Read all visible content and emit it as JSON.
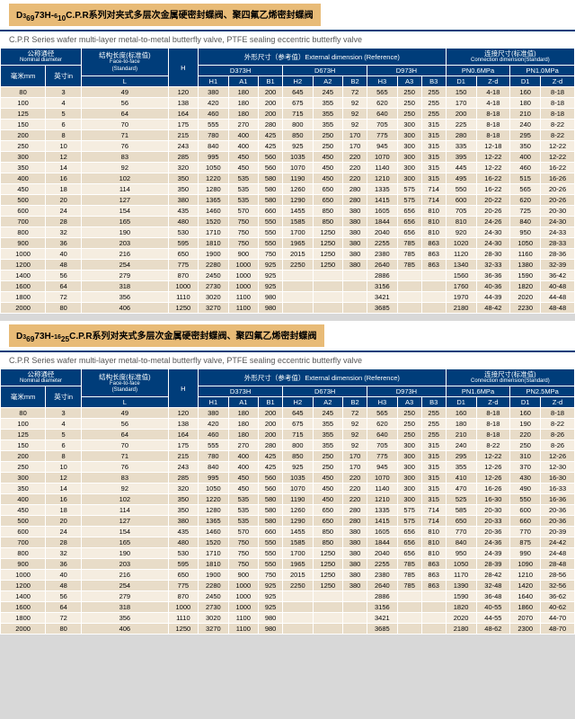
{
  "colors": {
    "header": "#003d7a",
    "titleBox": "#e8bb77",
    "rowOdd": "#e8dcc8",
    "rowEven": "#f5ede0",
    "border": "#fff"
  },
  "sections": [
    {
      "titleHtml": "D<span class='title-sup'>3</span><sub>6</sub><sub>9</sub>73H-<span class='title-sup'>6</span><sub>10</sub>C.P.R系列对夹式多层次金属硬密封蝶阀、聚四氟乙烯密封蝶阀",
      "subtitle": "C.P.R Series wafer multi-layer metal-to-metal butterfly valve,  PTFE sealing eccentric butterfly valve",
      "conn1": "PN0.6MPa",
      "conn2": "PN1.0MPa"
    },
    {
      "titleHtml": "D<span class='title-sup'>3</span><sub>6</sub><sub>9</sub>73H-<span class='title-sup'>16</span><sub>25</sub>C.P.R系列对夹式多层次金属硬密封蝶阀、聚四氟乙烯密封蝶阀",
      "subtitle": "C.P.R Series wafer multi-layer metal-to-metal butterfly valve,  PTFE sealing eccentric butterfly valve",
      "conn1": "PN1.6MPa",
      "conn2": "PN2.5MPa"
    }
  ],
  "headers": {
    "nomDia": "公称通径",
    "nomDiaEn": "Nominal diameter",
    "ftf": "结构长度(标准值)",
    "ftfEn": "Face-to-face",
    "ftfEn2": "(Standard)",
    "extDim": "外形尺寸（参考值）External dimension (Reference)",
    "connDim": "连接尺寸(标准值)",
    "connDimEn": "Connection dimension(Standard)",
    "mm": "毫米mm",
    "in": "英寸in",
    "L": "L",
    "H": "H",
    "D373H": "D373H",
    "D673H": "D673H",
    "D973H": "D973H",
    "H1": "H1",
    "A1": "A1",
    "B1": "B1",
    "H2": "H2",
    "A2": "A2",
    "B2": "B2",
    "H3": "H3",
    "A3": "A3",
    "B3": "B3",
    "D1": "D1",
    "Zd": "Z-d"
  },
  "rows1": [
    [
      "80",
      "3",
      "49",
      "120",
      "380",
      "180",
      "200",
      "645",
      "245",
      "72",
      "565",
      "250",
      "255",
      "150",
      "4-18",
      "160",
      "8-18"
    ],
    [
      "100",
      "4",
      "56",
      "138",
      "420",
      "180",
      "200",
      "675",
      "355",
      "92",
      "620",
      "250",
      "255",
      "170",
      "4-18",
      "180",
      "8-18"
    ],
    [
      "125",
      "5",
      "64",
      "164",
      "460",
      "180",
      "200",
      "715",
      "355",
      "92",
      "640",
      "250",
      "255",
      "200",
      "8-18",
      "210",
      "8-18"
    ],
    [
      "150",
      "6",
      "70",
      "175",
      "555",
      "270",
      "280",
      "800",
      "355",
      "92",
      "705",
      "300",
      "315",
      "225",
      "8-18",
      "240",
      "8-22"
    ],
    [
      "200",
      "8",
      "71",
      "215",
      "780",
      "400",
      "425",
      "850",
      "250",
      "170",
      "775",
      "300",
      "315",
      "280",
      "8-18",
      "295",
      "8-22"
    ],
    [
      "250",
      "10",
      "76",
      "243",
      "840",
      "400",
      "425",
      "925",
      "250",
      "170",
      "945",
      "300",
      "315",
      "335",
      "12-18",
      "350",
      "12-22"
    ],
    [
      "300",
      "12",
      "83",
      "285",
      "995",
      "450",
      "560",
      "1035",
      "450",
      "220",
      "1070",
      "300",
      "315",
      "395",
      "12-22",
      "400",
      "12-22"
    ],
    [
      "350",
      "14",
      "92",
      "320",
      "1050",
      "450",
      "560",
      "1070",
      "450",
      "220",
      "1140",
      "300",
      "315",
      "445",
      "12-22",
      "460",
      "16-22"
    ],
    [
      "400",
      "16",
      "102",
      "350",
      "1220",
      "535",
      "580",
      "1190",
      "450",
      "220",
      "1210",
      "300",
      "315",
      "495",
      "16-22",
      "515",
      "16-26"
    ],
    [
      "450",
      "18",
      "114",
      "350",
      "1280",
      "535",
      "580",
      "1260",
      "650",
      "280",
      "1335",
      "575",
      "714",
      "550",
      "16-22",
      "565",
      "20-26"
    ],
    [
      "500",
      "20",
      "127",
      "380",
      "1365",
      "535",
      "580",
      "1290",
      "650",
      "280",
      "1415",
      "575",
      "714",
      "600",
      "20-22",
      "620",
      "20-26"
    ],
    [
      "600",
      "24",
      "154",
      "435",
      "1460",
      "570",
      "660",
      "1455",
      "850",
      "380",
      "1605",
      "656",
      "810",
      "705",
      "20-26",
      "725",
      "20-30"
    ],
    [
      "700",
      "28",
      "165",
      "480",
      "1520",
      "750",
      "550",
      "1585",
      "850",
      "380",
      "1844",
      "656",
      "810",
      "810",
      "24-26",
      "840",
      "24-30"
    ],
    [
      "800",
      "32",
      "190",
      "530",
      "1710",
      "750",
      "550",
      "1700",
      "1250",
      "380",
      "2040",
      "656",
      "810",
      "920",
      "24-30",
      "950",
      "24-33"
    ],
    [
      "900",
      "36",
      "203",
      "595",
      "1810",
      "750",
      "550",
      "1965",
      "1250",
      "380",
      "2255",
      "785",
      "863",
      "1020",
      "24-30",
      "1050",
      "28-33"
    ],
    [
      "1000",
      "40",
      "216",
      "650",
      "1900",
      "900",
      "750",
      "2015",
      "1250",
      "380",
      "2380",
      "785",
      "863",
      "1120",
      "28-30",
      "1160",
      "28-36"
    ],
    [
      "1200",
      "48",
      "254",
      "775",
      "2280",
      "1000",
      "925",
      "2250",
      "1250",
      "380",
      "2640",
      "785",
      "863",
      "1340",
      "32-33",
      "1380",
      "32-39"
    ],
    [
      "1400",
      "56",
      "279",
      "870",
      "2450",
      "1000",
      "925",
      "",
      "",
      "",
      "2886",
      "",
      "",
      "1560",
      "36-36",
      "1590",
      "36-42"
    ],
    [
      "1600",
      "64",
      "318",
      "1000",
      "2730",
      "1000",
      "925",
      "",
      "",
      "",
      "3156",
      "",
      "",
      "1760",
      "40-36",
      "1820",
      "40-48"
    ],
    [
      "1800",
      "72",
      "356",
      "1110",
      "3020",
      "1100",
      "980",
      "",
      "",
      "",
      "3421",
      "",
      "",
      "1970",
      "44-39",
      "2020",
      "44-48"
    ],
    [
      "2000",
      "80",
      "406",
      "1250",
      "3270",
      "1100",
      "980",
      "",
      "",
      "",
      "3685",
      "",
      "",
      "2180",
      "48-42",
      "2230",
      "48-48"
    ]
  ],
  "rows2": [
    [
      "80",
      "3",
      "49",
      "120",
      "380",
      "180",
      "200",
      "645",
      "245",
      "72",
      "565",
      "250",
      "255",
      "160",
      "8-18",
      "160",
      "8-18"
    ],
    [
      "100",
      "4",
      "56",
      "138",
      "420",
      "180",
      "200",
      "675",
      "355",
      "92",
      "620",
      "250",
      "255",
      "180",
      "8-18",
      "190",
      "8-22"
    ],
    [
      "125",
      "5",
      "64",
      "164",
      "460",
      "180",
      "200",
      "715",
      "355",
      "92",
      "640",
      "250",
      "255",
      "210",
      "8-18",
      "220",
      "8-26"
    ],
    [
      "150",
      "6",
      "70",
      "175",
      "555",
      "270",
      "280",
      "800",
      "355",
      "92",
      "705",
      "300",
      "315",
      "240",
      "8-22",
      "250",
      "8-26"
    ],
    [
      "200",
      "8",
      "71",
      "215",
      "780",
      "400",
      "425",
      "850",
      "250",
      "170",
      "775",
      "300",
      "315",
      "295",
      "12-22",
      "310",
      "12-26"
    ],
    [
      "250",
      "10",
      "76",
      "243",
      "840",
      "400",
      "425",
      "925",
      "250",
      "170",
      "945",
      "300",
      "315",
      "355",
      "12-26",
      "370",
      "12-30"
    ],
    [
      "300",
      "12",
      "83",
      "285",
      "995",
      "450",
      "560",
      "1035",
      "450",
      "220",
      "1070",
      "300",
      "315",
      "410",
      "12-26",
      "430",
      "16-30"
    ],
    [
      "350",
      "14",
      "92",
      "320",
      "1050",
      "450",
      "560",
      "1070",
      "450",
      "220",
      "1140",
      "300",
      "315",
      "470",
      "16-26",
      "490",
      "16-33"
    ],
    [
      "400",
      "16",
      "102",
      "350",
      "1220",
      "535",
      "580",
      "1190",
      "450",
      "220",
      "1210",
      "300",
      "315",
      "525",
      "16-30",
      "550",
      "16-36"
    ],
    [
      "450",
      "18",
      "114",
      "350",
      "1280",
      "535",
      "580",
      "1260",
      "650",
      "280",
      "1335",
      "575",
      "714",
      "585",
      "20-30",
      "600",
      "20-36"
    ],
    [
      "500",
      "20",
      "127",
      "380",
      "1365",
      "535",
      "580",
      "1290",
      "650",
      "280",
      "1415",
      "575",
      "714",
      "650",
      "20-33",
      "660",
      "20-36"
    ],
    [
      "600",
      "24",
      "154",
      "435",
      "1460",
      "570",
      "660",
      "1455",
      "850",
      "380",
      "1605",
      "656",
      "810",
      "770",
      "20-36",
      "770",
      "20-39"
    ],
    [
      "700",
      "28",
      "165",
      "480",
      "1520",
      "750",
      "550",
      "1585",
      "850",
      "380",
      "1844",
      "656",
      "810",
      "840",
      "24-36",
      "875",
      "24-42"
    ],
    [
      "800",
      "32",
      "190",
      "530",
      "1710",
      "750",
      "550",
      "1700",
      "1250",
      "380",
      "2040",
      "656",
      "810",
      "950",
      "24-39",
      "990",
      "24-48"
    ],
    [
      "900",
      "36",
      "203",
      "595",
      "1810",
      "750",
      "550",
      "1965",
      "1250",
      "380",
      "2255",
      "785",
      "863",
      "1050",
      "28-39",
      "1090",
      "28-48"
    ],
    [
      "1000",
      "40",
      "216",
      "650",
      "1900",
      "900",
      "750",
      "2015",
      "1250",
      "380",
      "2380",
      "785",
      "863",
      "1170",
      "28-42",
      "1210",
      "28-56"
    ],
    [
      "1200",
      "48",
      "254",
      "775",
      "2280",
      "1000",
      "925",
      "2250",
      "1250",
      "380",
      "2640",
      "785",
      "863",
      "1390",
      "32-48",
      "1420",
      "32-56"
    ],
    [
      "1400",
      "56",
      "279",
      "870",
      "2450",
      "1000",
      "925",
      "",
      "",
      "",
      "2886",
      "",
      "",
      "1590",
      "36-48",
      "1640",
      "36-62"
    ],
    [
      "1600",
      "64",
      "318",
      "1000",
      "2730",
      "1000",
      "925",
      "",
      "",
      "",
      "3156",
      "",
      "",
      "1820",
      "40-55",
      "1860",
      "40-62"
    ],
    [
      "1800",
      "72",
      "356",
      "1110",
      "3020",
      "1100",
      "980",
      "",
      "",
      "",
      "3421",
      "",
      "",
      "2020",
      "44-55",
      "2070",
      "44-70"
    ],
    [
      "2000",
      "80",
      "406",
      "1250",
      "3270",
      "1100",
      "980",
      "",
      "",
      "",
      "3685",
      "",
      "",
      "2180",
      "48-62",
      "2300",
      "48-70"
    ]
  ]
}
